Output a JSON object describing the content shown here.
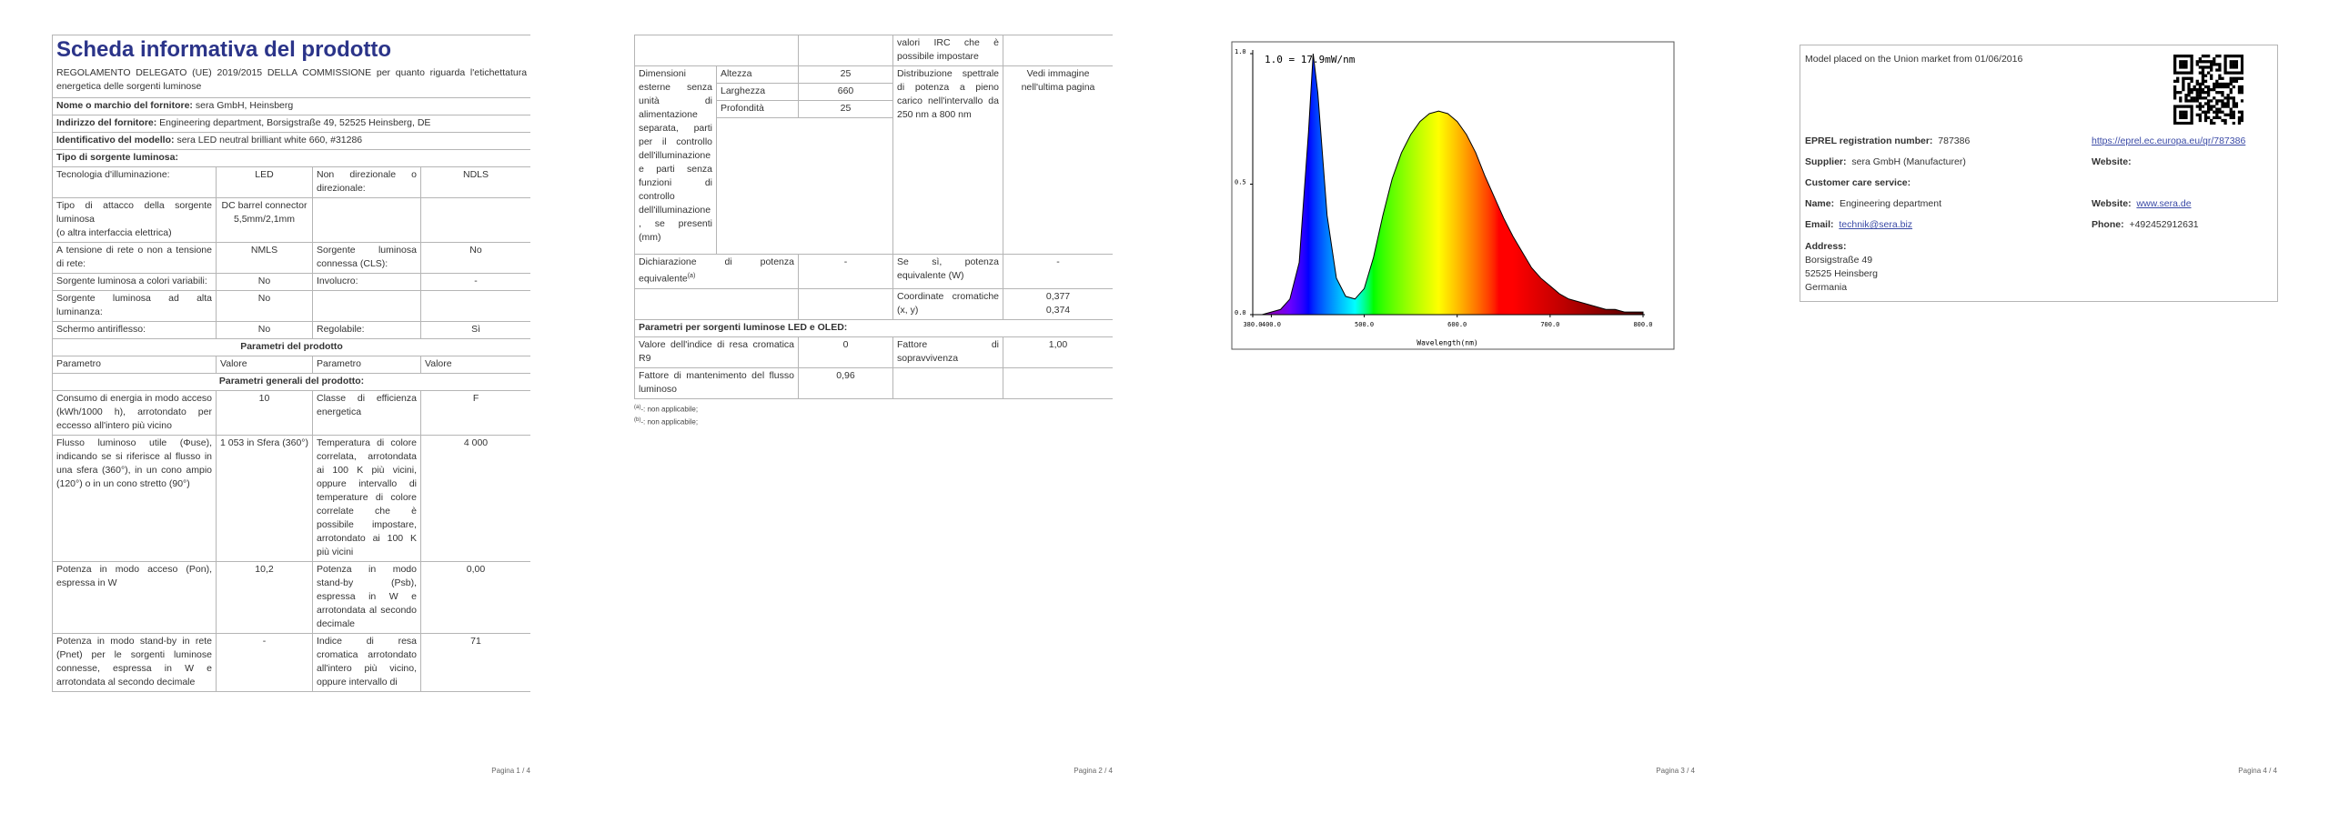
{
  "page1": {
    "title": "Scheda informativa del prodotto",
    "regulation": "REGOLAMENTO DELEGATO (UE) 2019/2015 DELLA COMMISSIONE per quanto riguarda l'etichettatura energetica delle sorgenti luminose",
    "supplier": {
      "label": "Nome o marchio del fornitore:",
      "value": "sera GmbH, Heinsberg"
    },
    "address": {
      "label": "Indirizzo del fornitore:",
      "value": "Engineering department, Borsigstraße 49, 52525 Heinsberg, DE"
    },
    "model": {
      "label": "Identificativo del modello:",
      "value": "sera LED neutral brilliant white 660, #31286"
    },
    "source_type_heading": "Tipo di sorgente luminosa:",
    "source_type_rows": [
      [
        "Tecnologia d'illuminazione:",
        "LED",
        "Non direzionale o direzionale:",
        "NDLS"
      ],
      [
        "Tipo di attacco della sorgente luminosa\n(o altra interfaccia elettrica)",
        "DC barrel connector 5,5mm/2,1mm",
        null,
        null
      ],
      [
        "A tensione di rete o non a tensione di rete:",
        "NMLS",
        "Sorgente luminosa connessa (CLS):",
        "No"
      ],
      [
        "Sorgente luminosa a colori variabili:",
        "No",
        "Involucro:",
        "-"
      ],
      [
        "Sorgente luminosa ad alta luminanza:",
        "No",
        null,
        null
      ],
      [
        "Schermo antiriflesso:",
        "No",
        "Regolabile:",
        "Sì"
      ]
    ],
    "params_heading": "Parametri del prodotto",
    "params_header": [
      "Parametro",
      "Valore",
      "Parametro",
      "Valore"
    ],
    "general_heading": "Parametri generali del prodotto:",
    "general_rows": [
      [
        "Consumo di energia in modo acceso (kWh/1000 h), arrotondato per eccesso all'intero più vicino",
        "10",
        "Classe di efficienza energetica",
        "F"
      ],
      [
        "Flusso luminoso utile (Φuse), indicando se si riferisce al flusso in una sfera (360°), in un cono ampio (120°) o in un cono stretto (90°)",
        "1 053 in Sfera (360°)",
        "Temperatura di colore correlata, arrotondata ai 100 K più vicini, oppure intervallo di temperature di colore correlate che è possibile impostare, arrotondato ai 100 K più vicini",
        "4 000"
      ],
      [
        "Potenza in modo acceso (Pon), espressa in W",
        "10,2",
        "Potenza in modo stand-by (Psb), espressa in W e arrotondata al secondo decimale",
        "0,00"
      ],
      [
        "Potenza in modo stand-by in rete (Pnet) per le sorgenti luminose connesse, espressa in W e arrotondata al secondo decimale",
        "-",
        "Indice di resa cromatica arrotondato all'intero più vicino, oppure intervallo di",
        "71"
      ]
    ],
    "footer": "Pagina 1 / 4"
  },
  "page2": {
    "irc_continued": "valori IRC che è possibile impostare",
    "dimensions": {
      "label": "Dimensioni esterne senza unità di alimentazione separata, parti per il controllo dell'illuminazione e parti senza funzioni di controllo dell'illuminazione, se presenti (mm)",
      "rows": [
        [
          "Altezza",
          "25"
        ],
        [
          "Larghezza",
          "660"
        ],
        [
          "Profondità",
          "25"
        ]
      ]
    },
    "spectral": {
      "label": "Distribuzione spettrale di potenza a pieno carico nell'intervallo da 250 nm a 800 nm",
      "value": "Vedi immagine nell'ultima pagina"
    },
    "equivalent": {
      "label": "Dichiarazione di potenza equivalente",
      "note": "(a)",
      "value": "-"
    },
    "equivalent_power": {
      "label": "Se sì, potenza equivalente (W)",
      "value": "-"
    },
    "chromaticity": {
      "label": "Coordinate cromatiche (x, y)",
      "values": [
        "0,377",
        "0,374"
      ]
    },
    "led_heading": "Parametri per sorgenti luminose LED e OLED:",
    "led_rows": [
      [
        "Valore dell'indice di resa cromatica R9",
        "0",
        "Fattore di sopravvivenza",
        "1,00"
      ],
      [
        "Fattore di mantenimento del flusso luminoso",
        "0,96",
        null,
        null
      ]
    ],
    "footnotes": [
      {
        "mark": "(a)",
        "text": "-: non applicabile;"
      },
      {
        "mark": "(b)",
        "text": "-: non applicabile;"
      }
    ],
    "footer": "Pagina 2 / 4"
  },
  "chart_data": {
    "type": "area",
    "annotation": "1.0 = 17.9mW/nm",
    "x_label": "Wavelength(nm)",
    "x": [
      380,
      390,
      400,
      410,
      420,
      430,
      440,
      445,
      450,
      460,
      470,
      480,
      490,
      500,
      510,
      520,
      530,
      540,
      550,
      560,
      570,
      580,
      590,
      600,
      610,
      620,
      630,
      640,
      650,
      660,
      670,
      680,
      690,
      700,
      710,
      720,
      730,
      740,
      750,
      760,
      770,
      780,
      790,
      800
    ],
    "values": [
      0,
      0,
      0.01,
      0.02,
      0.06,
      0.2,
      0.7,
      1.0,
      0.85,
      0.38,
      0.14,
      0.07,
      0.06,
      0.1,
      0.22,
      0.38,
      0.52,
      0.62,
      0.69,
      0.74,
      0.77,
      0.78,
      0.77,
      0.74,
      0.69,
      0.62,
      0.53,
      0.45,
      0.37,
      0.3,
      0.24,
      0.18,
      0.14,
      0.11,
      0.08,
      0.06,
      0.05,
      0.04,
      0.03,
      0.02,
      0.02,
      0.01,
      0.01,
      0.01
    ],
    "color": "#000000",
    "xlim": [
      380,
      800
    ],
    "ylim": [
      0,
      1
    ],
    "xticks": [
      {
        "value": 380,
        "label": "380.0"
      },
      {
        "value": 400,
        "label": "400.0"
      },
      {
        "value": 500,
        "label": "500.0"
      },
      {
        "value": 600,
        "label": "600.0"
      },
      {
        "value": 700,
        "label": "700.0"
      },
      {
        "value": 800,
        "label": "800.0"
      }
    ],
    "yticks": [
      {
        "value": 0,
        "label": "0.0"
      },
      {
        "value": 0.5,
        "label": "0.5"
      },
      {
        "value": 1,
        "label": "1.0"
      }
    ]
  },
  "page3": {
    "footer": "Pagina 3 / 4"
  },
  "page4": {
    "market": "Model placed on the Union market from 01/06/2016",
    "eprel": {
      "label": "EPREL registration number:",
      "value": "787386",
      "link": "https://eprel.ec.europa.eu/qr/787386"
    },
    "supplier": {
      "label": "Supplier:",
      "value": "sera GmbH (Manufacturer)",
      "website_label": "Website:"
    },
    "customer_care": "Customer care service:",
    "name": {
      "label": "Name:",
      "value": "Engineering department"
    },
    "website": {
      "label": "Website:",
      "value": "www.sera.de"
    },
    "email": {
      "label": "Email:",
      "value": "technik@sera.biz"
    },
    "phone": {
      "label": "Phone:",
      "value": "+492452912631"
    },
    "address": {
      "label": "Address:",
      "lines": [
        "Borsigstraße 49",
        "52525 Heinsberg",
        "Germania"
      ]
    },
    "footer": "Pagina 4 / 4"
  }
}
